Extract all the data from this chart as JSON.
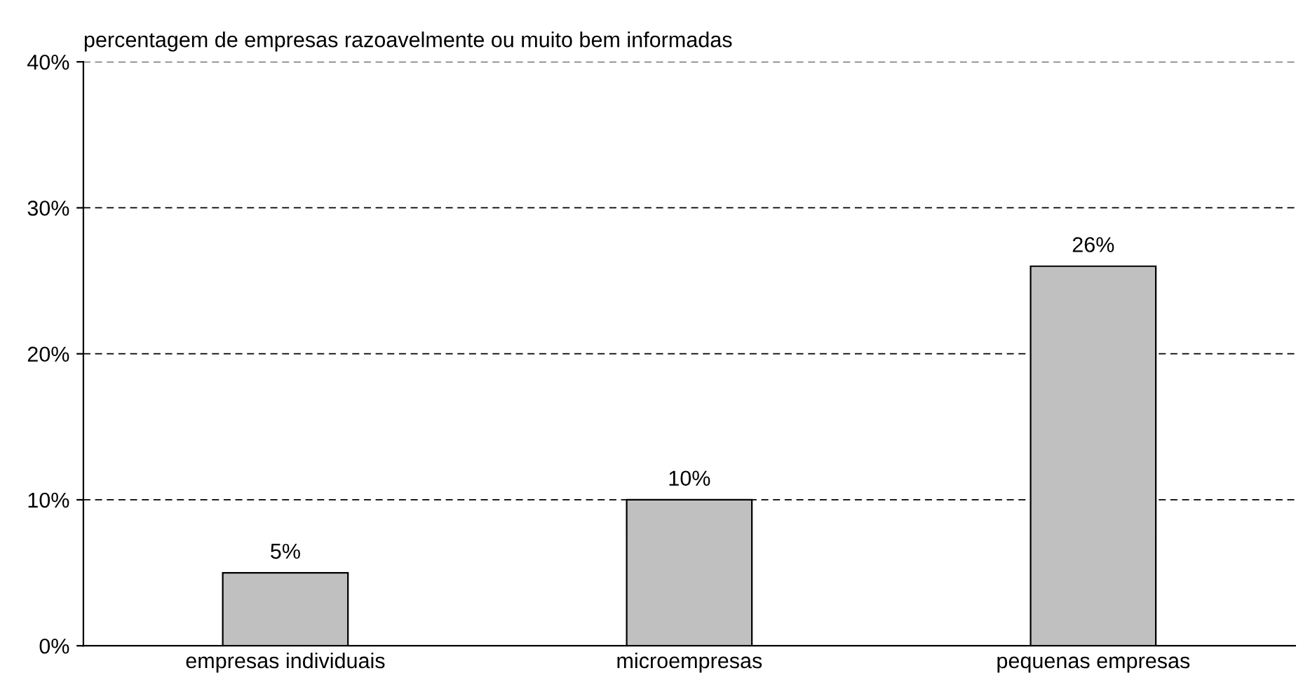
{
  "chart_data": {
    "type": "bar",
    "title": "percentagem de empresas razoavelmente ou muito bem informadas",
    "categories": [
      "empresas individuais",
      "microempresas",
      "pequenas empresas"
    ],
    "values": [
      5,
      10,
      26
    ],
    "value_labels": [
      "5%",
      "10%",
      "26%"
    ],
    "color": "#c0c0c0",
    "ylim": [
      0,
      40
    ],
    "yticks": [
      {
        "value": 0,
        "label": "0%"
      },
      {
        "value": 10,
        "label": "10%"
      },
      {
        "value": 20,
        "label": "20%"
      },
      {
        "value": 30,
        "label": "30%"
      },
      {
        "value": 40,
        "label": "40%"
      }
    ],
    "grid": "y",
    "line_style": "dashed",
    "legend": false
  }
}
